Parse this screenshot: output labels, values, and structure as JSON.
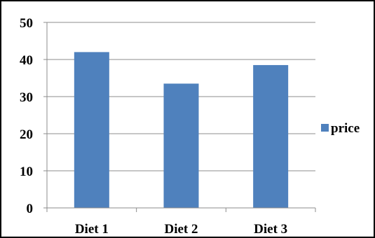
{
  "chart_data": {
    "type": "bar",
    "categories": [
      "Diet 1",
      "Diet 2",
      "Diet 3"
    ],
    "series": [
      {
        "name": "price",
        "values": [
          42,
          33.5,
          38.5
        ],
        "color": "#4f81bd"
      }
    ],
    "ylim": [
      0,
      50
    ],
    "yticks": [
      0,
      10,
      20,
      30,
      40,
      50
    ],
    "ytick_labels": [
      "0",
      "10",
      "20",
      "30",
      "40",
      "50"
    ],
    "grid": true,
    "legend_position": "right"
  }
}
